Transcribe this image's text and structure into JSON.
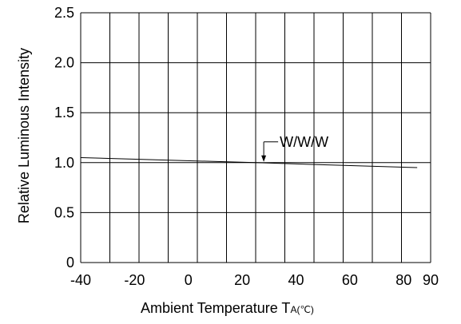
{
  "chart_data": {
    "type": "line",
    "xlabel_main": "Ambient Temperature T",
    "xlabel_sub": "A",
    "xlabel_unit": "(℃)",
    "ylabel": "Relative Luminous Intensity",
    "xlim": [
      -40,
      90
    ],
    "ylim": [
      0,
      2.5
    ],
    "x_ticks": [
      "-40",
      "-20",
      "0",
      "20",
      "40",
      "60",
      "80",
      "90"
    ],
    "y_ticks": [
      "0",
      "0.5",
      "1.0",
      "1.5",
      "2.0",
      "2.5"
    ],
    "grid": true,
    "series": [
      {
        "name": "W/W/W",
        "x": [
          -40,
          25,
          85
        ],
        "y": [
          1.05,
          1.0,
          0.95
        ]
      }
    ],
    "annotation": {
      "text": "W/W/W",
      "x": 28,
      "y": 1.0
    }
  }
}
